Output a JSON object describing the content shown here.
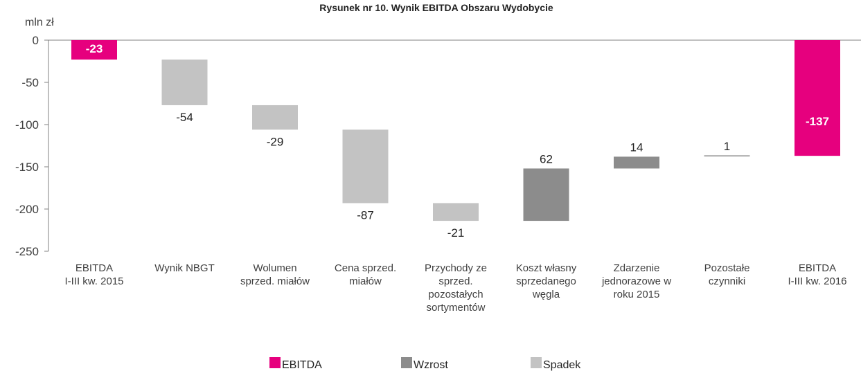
{
  "chart_data": {
    "type": "bar",
    "subtype": "waterfall",
    "title": "Rysunek nr 10. Wynik EBITDA Obszaru Wydobycie",
    "unit_label": "mln zł",
    "ylim": [
      -250,
      0
    ],
    "yticks": [
      0,
      -50,
      -100,
      -150,
      -200,
      -250
    ],
    "grid": false,
    "legend_position": "bottom",
    "categories": [
      [
        "EBITDA",
        "I-III kw. 2015"
      ],
      [
        "Wynik NBGT"
      ],
      [
        "Wolumen",
        "sprzed. miałów"
      ],
      [
        "Cena sprzed.",
        "miałów"
      ],
      [
        "Przychody ze",
        "sprzed.",
        "pozostałych",
        "sortymentów"
      ],
      [
        "Koszt własny",
        "sprzedanego",
        "węgla"
      ],
      [
        "Zdarzenie",
        "jednorazowe w",
        "roku 2015"
      ],
      [
        "Pozostałe",
        "czynniki"
      ],
      [
        "EBITDA",
        "I-III kw. 2016"
      ]
    ],
    "bars": [
      {
        "kind": "total",
        "start": 0,
        "end": -23,
        "label": "-23"
      },
      {
        "kind": "decrease",
        "start": -23,
        "end": -77,
        "label": "-54"
      },
      {
        "kind": "decrease",
        "start": -77,
        "end": -106,
        "label": "-29"
      },
      {
        "kind": "decrease",
        "start": -106,
        "end": -193,
        "label": "-87"
      },
      {
        "kind": "decrease",
        "start": -193,
        "end": -214,
        "label": "-21"
      },
      {
        "kind": "increase",
        "start": -214,
        "end": -152,
        "label": "62"
      },
      {
        "kind": "increase",
        "start": -152,
        "end": -138,
        "label": "14"
      },
      {
        "kind": "increase",
        "start": -138,
        "end": -137,
        "label": "1"
      },
      {
        "kind": "total",
        "start": 0,
        "end": -137,
        "label": "-137"
      }
    ],
    "legend": [
      {
        "kind": "total",
        "label": "EBITDA"
      },
      {
        "kind": "increase",
        "label": "Wzrost"
      },
      {
        "kind": "decrease",
        "label": "Spadek"
      }
    ],
    "colors": {
      "total": "#e6007e",
      "increase": "#8c8c8c",
      "decrease": "#c3c3c3",
      "axis": "#808080"
    }
  }
}
